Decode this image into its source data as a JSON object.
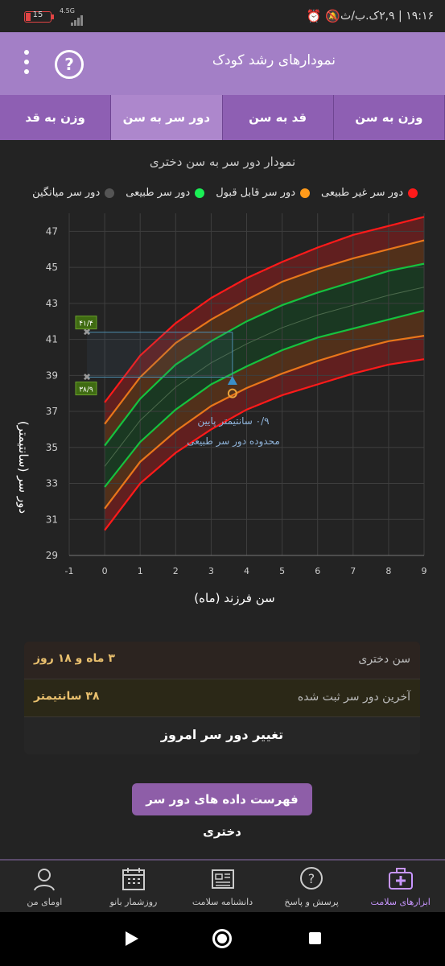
{
  "status_bar": {
    "time": "۱۹:۱۶ | ۲,۹ک.ب/ث",
    "battery": "15",
    "network": "4.5G"
  },
  "app_bar": {
    "title": "نمودارهای رشد کودک",
    "help_icon": "question-circle-icon",
    "menu_icon": "more-vert-icon"
  },
  "tabs": [
    {
      "label": "وزن به سن",
      "active": false
    },
    {
      "label": "قد به سن",
      "active": false
    },
    {
      "label": "دور سر به سن",
      "active": true
    },
    {
      "label": "وزن به قد",
      "active": false
    }
  ],
  "chart": {
    "heading": "نمودار دور سر به سن دختری",
    "legend": [
      {
        "label": "دور سر غیر طبیعی",
        "color": "#ff1a1a"
      },
      {
        "label": "دور سر قابل قبول",
        "color": "#ff9a1a"
      },
      {
        "label": "دور سر طبیعی",
        "color": "#1aef55"
      },
      {
        "label": "دور سر میانگین",
        "color": "#555555"
      }
    ],
    "ylabel": "دور سر (سانتیمتر)",
    "xlabel": "سن فرزند (ماه)",
    "annotation_line1": "۰/۹ سانتیمتر پایین",
    "annotation_line2": "محدوده دور سر طبیعی",
    "badge_top": "۴۱/۴",
    "badge_bottom": "۳۸/۹"
  },
  "chart_data": {
    "type": "line",
    "xlim": [
      -1,
      9
    ],
    "ylim": [
      29,
      48
    ],
    "x_ticks": [
      -1,
      0,
      1,
      2,
      3,
      4,
      5,
      6,
      7,
      8,
      9
    ],
    "y_ticks": [
      29,
      31,
      33,
      35,
      37,
      39,
      41,
      43,
      45,
      47
    ],
    "grid": true,
    "x": [
      0,
      1,
      2,
      3,
      4,
      5,
      6,
      7,
      8,
      9
    ],
    "series": [
      {
        "group": "red",
        "values": [
          37.5,
          40.1,
          41.9,
          43.3,
          44.4,
          45.3,
          46.1,
          46.8,
          47.3,
          47.8
        ]
      },
      {
        "group": "orange",
        "values": [
          36.3,
          38.9,
          40.8,
          42.1,
          43.2,
          44.2,
          44.9,
          45.5,
          46.0,
          46.5
        ]
      },
      {
        "group": "green",
        "values": [
          35.1,
          37.7,
          39.6,
          40.9,
          42.0,
          42.9,
          43.6,
          44.2,
          44.8,
          45.2
        ]
      },
      {
        "group": "green",
        "values": [
          32.8,
          35.3,
          37.1,
          38.5,
          39.5,
          40.4,
          41.1,
          41.6,
          42.1,
          42.6
        ]
      },
      {
        "group": "orange",
        "values": [
          31.6,
          34.2,
          35.9,
          37.3,
          38.3,
          39.1,
          39.8,
          40.4,
          40.9,
          41.2
        ]
      },
      {
        "group": "red",
        "values": [
          30.4,
          33.0,
          34.7,
          36.0,
          37.1,
          37.9,
          38.5,
          39.1,
          39.6,
          39.9
        ]
      }
    ],
    "child_point": {
      "x": 3.6,
      "y": 38.0
    },
    "normal_low_marker": {
      "x": 3.6,
      "y": 38.7
    },
    "ref_lines": [
      41.4,
      38.9
    ]
  },
  "info": {
    "age_label": "سن دختری",
    "age_value": "۳ ماه و ۱۸ روز",
    "last_label": "آخرین دور سر ثبت شده",
    "last_value": "۳۸ سانتیمتر",
    "change_action": "تغییر دور سر امروز"
  },
  "list_button": "فهرست داده های دور سر دختری",
  "bottom_nav": [
    {
      "label": "ابزارهای سلامت",
      "icon": "medical-kit-icon",
      "active": true
    },
    {
      "label": "پرسش و پاسخ",
      "icon": "question-bubble-icon",
      "active": false
    },
    {
      "label": "دانشنامه سلامت",
      "icon": "newspaper-icon",
      "active": false
    },
    {
      "label": "روزشمار بانو",
      "icon": "calendar-icon",
      "active": false
    },
    {
      "label": "اومای من",
      "icon": "profile-icon",
      "active": false
    }
  ]
}
